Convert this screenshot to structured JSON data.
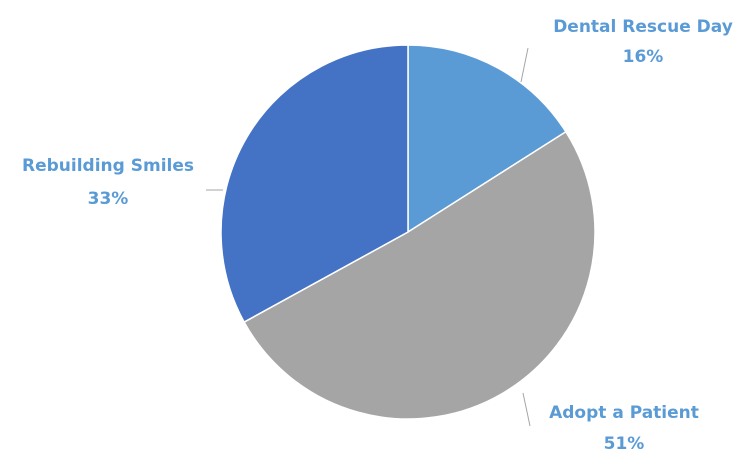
{
  "chart_data": {
    "type": "pie",
    "slices": [
      {
        "label": "Dental Rescue Day",
        "value": 16,
        "display": "16%",
        "color": "#5b9bd5",
        "label_color": "#5b9bd5"
      },
      {
        "label": "Adopt a Patient",
        "value": 51,
        "display": "51%",
        "color": "#a5a5a5",
        "label_color": "#5b9bd5"
      },
      {
        "label": "Rebuilding Smiles",
        "value": 33,
        "display": "33%",
        "color": "#4472c4",
        "label_color": "#5b9bd5"
      }
    ],
    "start_angle_deg": 0,
    "direction": "clockwise",
    "slice_border_color": "#ffffff",
    "leader_line_color": "#a6a6a6",
    "legend": "none"
  }
}
